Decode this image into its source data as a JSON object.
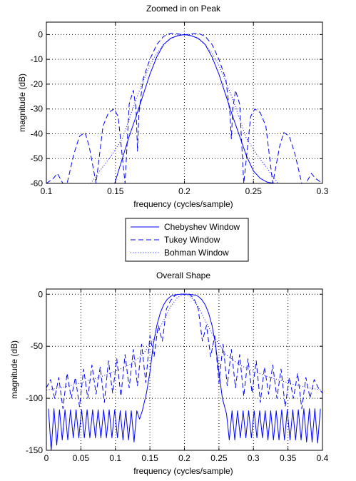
{
  "chart_data": [
    {
      "type": "line",
      "title": "Zoomed in on Peak",
      "xlabel": "frequency (cycles/sample)",
      "ylabel": "magnitude (dB)",
      "xlim": [
        0.1,
        0.3
      ],
      "ylim": [
        -60,
        5
      ],
      "xticks": [
        0.1,
        0.15,
        0.2,
        0.25,
        0.3
      ],
      "xtick_labels": [
        "0.1",
        "0.15",
        "0.2",
        "0.25",
        "0.3"
      ],
      "yticks": [
        -60,
        -50,
        -40,
        -30,
        -20,
        -10,
        0
      ],
      "ytick_labels": [
        "-60",
        "-50",
        "-40",
        "-30",
        "-20",
        "-10",
        "0"
      ],
      "grid": true,
      "series": [
        {
          "name": "Chebyshev Window",
          "style": "solid",
          "color": "#0000ff",
          "x": [
            0.1495,
            0.155,
            0.16,
            0.165,
            0.17,
            0.175,
            0.18,
            0.185,
            0.19,
            0.195,
            0.2,
            0.205,
            0.21,
            0.215,
            0.22,
            0.225,
            0.23,
            0.235,
            0.24,
            0.245,
            0.25,
            0.255,
            0.26,
            0.2655
          ],
          "y": [
            -60,
            -50,
            -41,
            -33,
            -24.5,
            -16,
            -9,
            -4,
            -1.5,
            -0.5,
            0,
            -0.5,
            -1.5,
            -4,
            -9,
            -16,
            -24.5,
            -33,
            -41,
            -49,
            -55,
            -58,
            -59.5,
            -60
          ]
        },
        {
          "name": "Tukey Window",
          "style": "dashed",
          "color": "#0000ff",
          "x": [
            0.1,
            0.105,
            0.108,
            0.112,
            0.115,
            0.12,
            0.124,
            0.128,
            0.131,
            0.136,
            0.141,
            0.145,
            0.149,
            0.152,
            0.157,
            0.16,
            0.163,
            0.165,
            0.166,
            0.167,
            0.17,
            0.175,
            0.18,
            0.185,
            0.19,
            0.195,
            0.2,
            0.205,
            0.21,
            0.215,
            0.22,
            0.225,
            0.23,
            0.233,
            0.234,
            0.235,
            0.237,
            0.24,
            0.243,
            0.248,
            0.251,
            0.255,
            0.259,
            0.264,
            0.269,
            0.272,
            0.276,
            0.28,
            0.285,
            0.288,
            0.292,
            0.295,
            0.3
          ],
          "y": [
            -60,
            -58,
            -56,
            -60,
            -60,
            -48,
            -41,
            -39.5,
            -45,
            -60,
            -37,
            -31.5,
            -30,
            -33,
            -60,
            -28,
            -22.5,
            -30,
            -47,
            -32,
            -18,
            -10,
            -4,
            -0.7,
            0.5,
            0.3,
            -0.2,
            0.3,
            0.5,
            -0.7,
            -4,
            -10,
            -18,
            -32,
            -42,
            -30,
            -22.5,
            -28,
            -60,
            -33,
            -30,
            -31.5,
            -37,
            -60,
            -45,
            -39.5,
            -41,
            -48,
            -60,
            -60,
            -56,
            -58,
            -60
          ]
        },
        {
          "name": "Bohman Window",
          "style": "dotted",
          "color": "#0000ff",
          "x": [
            0.132,
            0.14,
            0.148,
            0.155,
            0.16,
            0.165,
            0.17,
            0.175,
            0.18,
            0.185,
            0.19,
            0.195,
            0.2,
            0.205,
            0.21,
            0.215,
            0.22,
            0.225,
            0.23,
            0.235,
            0.24,
            0.245,
            0.252,
            0.26,
            0.268
          ],
          "y": [
            -60,
            -54,
            -48,
            -42,
            -34,
            -26,
            -19,
            -12.5,
            -7.5,
            -4,
            -1.7,
            -0.4,
            0,
            -0.4,
            -1.7,
            -4,
            -7.5,
            -12.5,
            -19,
            -26,
            -34,
            -42,
            -48,
            -54,
            -60
          ]
        }
      ]
    },
    {
      "type": "line",
      "title": "Overall Shape",
      "xlabel": "frequency (cycles/sample)",
      "ylabel": "magnitude (dB)",
      "xlim": [
        0,
        0.4
      ],
      "ylim": [
        -150,
        5
      ],
      "xticks": [
        0,
        0.05,
        0.1,
        0.15,
        0.2,
        0.25,
        0.3,
        0.35,
        0.4
      ],
      "xtick_labels": [
        "0",
        "0.05",
        "0.1",
        "0.15",
        "0.2",
        "0.25",
        "0.3",
        "0.35",
        "0.4"
      ],
      "yticks": [
        -150,
        -100,
        -50,
        0
      ],
      "ytick_labels": [
        "-150",
        "-100",
        "-50",
        "0"
      ],
      "grid": true,
      "series": [
        {
          "name": "Chebyshev Window",
          "style": "solid",
          "color": "#0000ff",
          "x": [
            0.003,
            0.007,
            0.011,
            0.015,
            0.019,
            0.023,
            0.027,
            0.031,
            0.035,
            0.039,
            0.043,
            0.047,
            0.051,
            0.055,
            0.059,
            0.063,
            0.067,
            0.071,
            0.075,
            0.079,
            0.083,
            0.087,
            0.091,
            0.095,
            0.099,
            0.103,
            0.107,
            0.111,
            0.115,
            0.119,
            0.123,
            0.127,
            0.131,
            0.135,
            0.139,
            0.145,
            0.15,
            0.155,
            0.16,
            0.165,
            0.17,
            0.175,
            0.18,
            0.185,
            0.19,
            0.195,
            0.2,
            0.205,
            0.21,
            0.215,
            0.22,
            0.225,
            0.23,
            0.235,
            0.24,
            0.245,
            0.25,
            0.255,
            0.261,
            0.265,
            0.269,
            0.273,
            0.277,
            0.281,
            0.285,
            0.289,
            0.293,
            0.297,
            0.301,
            0.305,
            0.309,
            0.313,
            0.317,
            0.321,
            0.325,
            0.329,
            0.333,
            0.337,
            0.341,
            0.345,
            0.349,
            0.353,
            0.357,
            0.361,
            0.365,
            0.369,
            0.373,
            0.377,
            0.381,
            0.385,
            0.389,
            0.393,
            0.397
          ],
          "y": [
            -110,
            -150,
            -110,
            -145,
            -111,
            -140,
            -111,
            -140,
            -111,
            -138,
            -111,
            -138,
            -111,
            -138,
            -111,
            -138,
            -111,
            -138,
            -111,
            -138,
            -111,
            -138,
            -111,
            -138,
            -111,
            -138,
            -112,
            -140,
            -112,
            -140,
            -112,
            -142,
            -112,
            -120,
            -112,
            -95,
            -75,
            -48,
            -30,
            -18,
            -10,
            -5,
            -2,
            -0.8,
            -0.2,
            0,
            0,
            0,
            -0.2,
            -0.8,
            -2,
            -5,
            -10,
            -18,
            -30,
            -48,
            -75,
            -100,
            -115,
            -140,
            -112,
            -140,
            -112,
            -138,
            -112,
            -138,
            -112,
            -138,
            -112,
            -138,
            -112,
            -138,
            -112,
            -140,
            -112,
            -140,
            -112,
            -140,
            -111,
            -140,
            -111,
            -140,
            -111,
            -140,
            -111,
            -140,
            -110,
            -142,
            -110,
            -142,
            -110,
            -143,
            -110
          ]
        },
        {
          "name": "Tukey Window",
          "style": "dashed",
          "color": "#0000ff",
          "x": [
            0,
            0.006,
            0.012,
            0.018,
            0.024,
            0.03,
            0.036,
            0.042,
            0.048,
            0.054,
            0.06,
            0.066,
            0.072,
            0.078,
            0.084,
            0.09,
            0.096,
            0.102,
            0.108,
            0.114,
            0.12,
            0.126,
            0.132,
            0.138,
            0.144,
            0.15,
            0.156,
            0.162,
            0.168,
            0.174,
            0.18,
            0.186,
            0.192,
            0.198,
            0.2,
            0.205,
            0.21,
            0.215,
            0.22,
            0.226,
            0.232,
            0.238,
            0.244,
            0.25,
            0.256,
            0.262,
            0.268,
            0.274,
            0.28,
            0.286,
            0.292,
            0.298,
            0.304,
            0.31,
            0.316,
            0.322,
            0.328,
            0.334,
            0.34,
            0.346,
            0.352,
            0.358,
            0.364,
            0.37,
            0.376,
            0.382,
            0.388,
            0.394,
            0.4
          ],
          "y": [
            -90,
            -82,
            -100,
            -80,
            -110,
            -76,
            -100,
            -80,
            -108,
            -72,
            -100,
            -68,
            -96,
            -70,
            -104,
            -64,
            -95,
            -62,
            -98,
            -58,
            -90,
            -53,
            -88,
            -48,
            -85,
            -40,
            -60,
            -30,
            -45,
            -14,
            -6,
            -1.5,
            0.5,
            0,
            0,
            0.5,
            -1.5,
            -6,
            -14,
            -45,
            -30,
            -60,
            -40,
            -85,
            -48,
            -88,
            -53,
            -90,
            -58,
            -98,
            -62,
            -95,
            -64,
            -104,
            -70,
            -96,
            -68,
            -100,
            -72,
            -108,
            -80,
            -100,
            -76,
            -110,
            -80,
            -100,
            -82,
            -90,
            -95
          ]
        },
        {
          "name": "Bohman Window",
          "style": "dotted",
          "color": "#0000ff",
          "x": [
            0,
            0.02,
            0.04,
            0.06,
            0.08,
            0.1,
            0.12,
            0.14,
            0.16,
            0.18,
            0.19,
            0.2,
            0.21,
            0.22,
            0.24,
            0.26,
            0.28,
            0.3,
            0.32,
            0.34,
            0.36,
            0.38,
            0.4
          ],
          "y": [
            -92,
            -90,
            -87,
            -83,
            -79,
            -74,
            -68,
            -58,
            -38,
            -12,
            -3,
            0,
            -3,
            -12,
            -38,
            -58,
            -68,
            -74,
            -79,
            -83,
            -87,
            -90,
            -92
          ]
        }
      ]
    }
  ]
}
